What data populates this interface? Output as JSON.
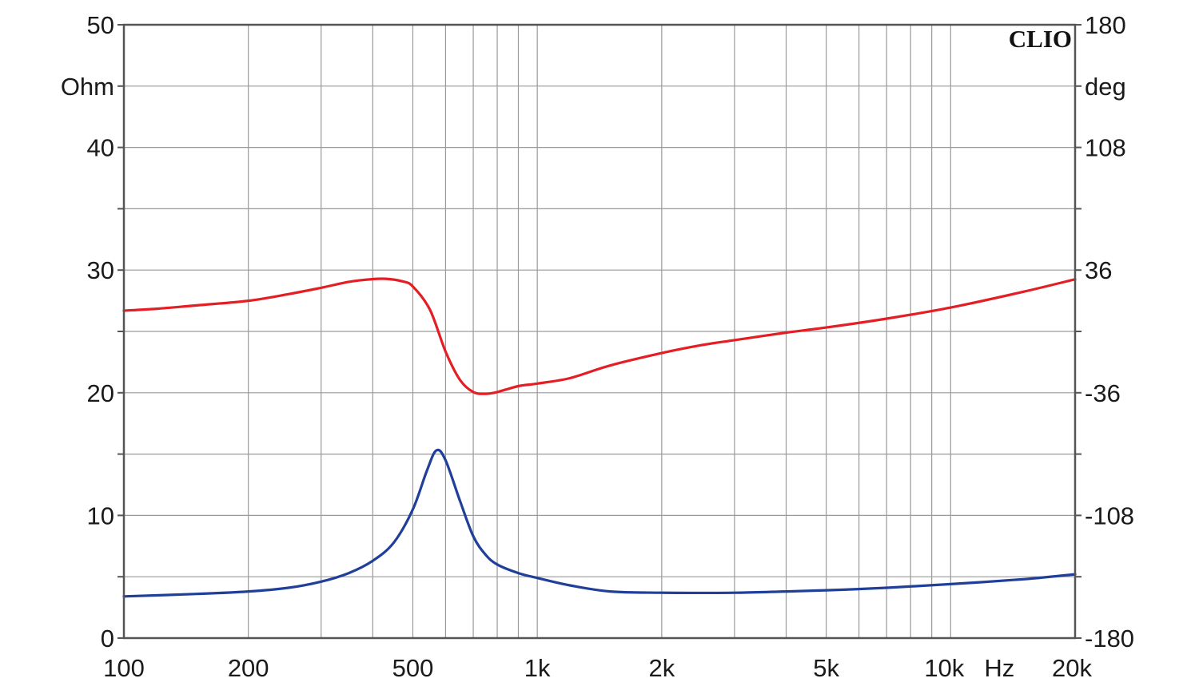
{
  "brand": "CLIO",
  "chart_data": {
    "type": "line",
    "x_scale": "log",
    "xlim": [
      100,
      20000
    ],
    "ylim_left": [
      0,
      50
    ],
    "ylim_right": [
      -180,
      180
    ],
    "grid": true,
    "left_unit": "Ohm",
    "right_unit": "deg",
    "x_unit": "Hz",
    "x_ticks": [
      {
        "value": 100,
        "label": "100"
      },
      {
        "value": 200,
        "label": "200"
      },
      {
        "value": 500,
        "label": "500"
      },
      {
        "value": 1000,
        "label": "1k"
      },
      {
        "value": 2000,
        "label": "2k"
      },
      {
        "value": 5000,
        "label": "5k"
      },
      {
        "value": 10000,
        "label": "10k"
      },
      {
        "value": 20000,
        "label": "20k"
      }
    ],
    "y_left_ticks": [
      {
        "value": 0,
        "label": "0"
      },
      {
        "value": 10,
        "label": "10"
      },
      {
        "value": 20,
        "label": "20"
      },
      {
        "value": 30,
        "label": "30"
      },
      {
        "value": 40,
        "label": "40"
      },
      {
        "value": 50,
        "label": "50"
      }
    ],
    "y_right_ticks": [
      {
        "value": -180,
        "label": "-180"
      },
      {
        "value": -108,
        "label": "-108"
      },
      {
        "value": -36,
        "label": "-36"
      },
      {
        "value": 36,
        "label": "36"
      },
      {
        "value": 108,
        "label": "108"
      },
      {
        "value": 180,
        "label": "180"
      }
    ],
    "series": [
      {
        "color": "#e31e24",
        "axis": "right",
        "points": [
          [
            100,
            12.2
          ],
          [
            120,
            13.3
          ],
          [
            150,
            15.3
          ],
          [
            200,
            18.0
          ],
          [
            250,
            21.9
          ],
          [
            300,
            25.6
          ],
          [
            350,
            29.1
          ],
          [
            400,
            30.7
          ],
          [
            430,
            30.9
          ],
          [
            470,
            29.5
          ],
          [
            500,
            26.4
          ],
          [
            550,
            12.7
          ],
          [
            600,
            -11.8
          ],
          [
            650,
            -28.4
          ],
          [
            700,
            -35.6
          ],
          [
            750,
            -36.6
          ],
          [
            800,
            -35.6
          ],
          [
            900,
            -32.1
          ],
          [
            1000,
            -30.6
          ],
          [
            1200,
            -27.4
          ],
          [
            1500,
            -20.0
          ],
          [
            2000,
            -12.7
          ],
          [
            2500,
            -8.0
          ],
          [
            3000,
            -5.1
          ],
          [
            4000,
            -0.7
          ],
          [
            5000,
            2.3
          ],
          [
            7000,
            7.5
          ],
          [
            10000,
            14.0
          ],
          [
            15000,
            23.3
          ],
          [
            20000,
            30.6
          ]
        ]
      },
      {
        "color": "#1f3f99",
        "axis": "left",
        "points": [
          [
            100,
            3.4
          ],
          [
            150,
            3.6
          ],
          [
            200,
            3.8
          ],
          [
            250,
            4.1
          ],
          [
            300,
            4.6
          ],
          [
            350,
            5.3
          ],
          [
            400,
            6.3
          ],
          [
            450,
            7.8
          ],
          [
            500,
            10.5
          ],
          [
            540,
            13.6
          ],
          [
            570,
            15.3
          ],
          [
            600,
            14.5
          ],
          [
            650,
            11.2
          ],
          [
            700,
            8.3
          ],
          [
            750,
            6.8
          ],
          [
            800,
            6.0
          ],
          [
            900,
            5.3
          ],
          [
            1000,
            4.9
          ],
          [
            1200,
            4.3
          ],
          [
            1500,
            3.8
          ],
          [
            2000,
            3.7
          ],
          [
            3000,
            3.7
          ],
          [
            5000,
            3.9
          ],
          [
            7000,
            4.1
          ],
          [
            10000,
            4.4
          ],
          [
            15000,
            4.8
          ],
          [
            20000,
            5.2
          ]
        ]
      }
    ]
  }
}
